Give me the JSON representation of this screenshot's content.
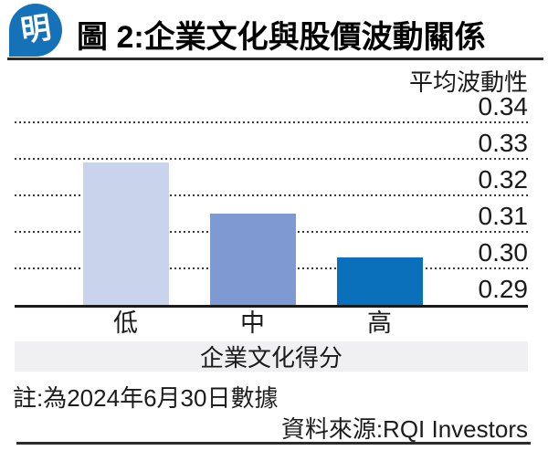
{
  "header": {
    "logo_char": "明",
    "title": "圖 2:企業文化與股價波動關係"
  },
  "chart_data": {
    "type": "bar",
    "title": "圖 2:企業文化與股價波動關係",
    "categories": [
      "低",
      "中",
      "高"
    ],
    "values": [
      0.329,
      0.315,
      0.303
    ],
    "ylabel": "平均波動性",
    "xlabel": "企業文化得分",
    "ylim": [
      0.29,
      0.345
    ],
    "ytick_labels": [
      "0.34",
      "0.33",
      "0.32",
      "0.31",
      "0.30",
      "0.29"
    ],
    "grid": "horizontal-dotted",
    "legend": "none",
    "bar_colors": [
      "#c9d3ec",
      "#7f9ad2",
      "#0a70bc"
    ]
  },
  "footer": {
    "note": "註:為2024年6月30日數據",
    "source": "資料來源:RQI Investors"
  },
  "colors": {
    "logo_blue": "#1571b8",
    "band_gray": "#f0f0f2",
    "rule_dark": "#2b2b2b"
  }
}
